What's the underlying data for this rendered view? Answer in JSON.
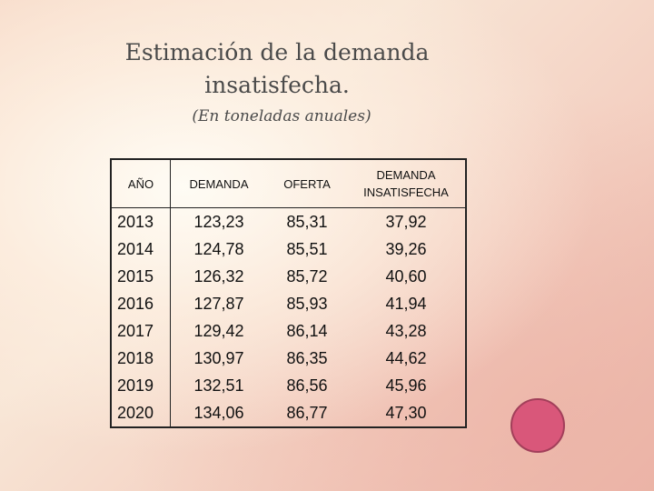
{
  "title_line1": "Estimación de la demanda",
  "title_line2": "insatisfecha.",
  "subtitle": "(En toneladas anuales)",
  "table": {
    "headers": [
      "AÑO",
      "DEMANDA",
      "OFERTA",
      "DEMANDA",
      "INSATISFECHA"
    ],
    "rows": [
      [
        "2013",
        "123,23",
        "85,31",
        "37,92"
      ],
      [
        "2014",
        "124,78",
        "85,51",
        "39,26"
      ],
      [
        "2015",
        "126,32",
        "85,72",
        "40,60"
      ],
      [
        "2016",
        "127,87",
        "85,93",
        "41,94"
      ],
      [
        "2017",
        "129,42",
        "86,14",
        "43,28"
      ],
      [
        "2018",
        "130,97",
        "86,35",
        "44,62"
      ],
      [
        "2019",
        "132,51",
        "86,56",
        "45,96"
      ],
      [
        "2020",
        "134,06",
        "86,77",
        "47,30"
      ]
    ]
  },
  "decoration": {
    "circle_color": "#d9577a"
  }
}
